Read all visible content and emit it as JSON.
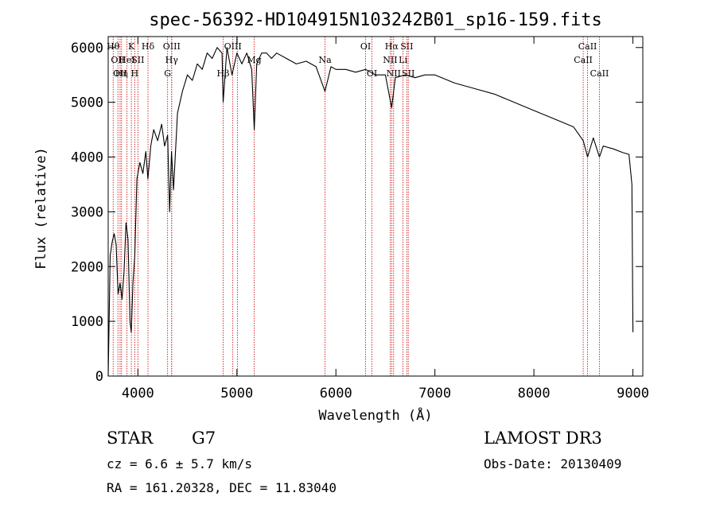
{
  "chart_data": {
    "type": "line",
    "title": "spec-56392-HD104915N103242B01_sp16-159.fits",
    "xlabel": "Wavelength (Å)",
    "ylabel": "Flux (relative)",
    "xlim": [
      3700,
      9100
    ],
    "ylim": [
      0,
      6200
    ],
    "xticks": [
      4000,
      5000,
      6000,
      7000,
      8000,
      9000
    ],
    "yticks": [
      0,
      1000,
      2000,
      3000,
      4000,
      5000,
      6000
    ],
    "series": [
      {
        "x": [
          3700,
          3720,
          3740,
          3760,
          3780,
          3800,
          3820,
          3840,
          3860,
          3880,
          3900,
          3920,
          3933,
          3950,
          3968,
          3990,
          4020,
          4050,
          4080,
          4101,
          4130,
          4160,
          4200,
          4240,
          4270,
          4300,
          4320,
          4340,
          4360,
          4400,
          4450,
          4500,
          4550,
          4600,
          4650,
          4700,
          4750,
          4800,
          4850,
          4861,
          4900,
          4950,
          5000,
          5050,
          5100,
          5150,
          5175,
          5200,
          5250,
          5300,
          5350,
          5400,
          5500,
          5600,
          5700,
          5800,
          5890,
          5950,
          6000,
          6100,
          6200,
          6300,
          6400,
          6500,
          6563,
          6600,
          6700,
          6800,
          6900,
          7000,
          7200,
          7400,
          7600,
          7800,
          8000,
          8200,
          8400,
          8498,
          8542,
          8600,
          8662,
          8700,
          8800,
          8900,
          8960,
          8990,
          9000
        ],
        "y": [
          0,
          2200,
          2450,
          2600,
          2400,
          1500,
          1700,
          1400,
          1900,
          2800,
          2500,
          1000,
          800,
          1700,
          2200,
          3600,
          3900,
          3700,
          4100,
          3600,
          4200,
          4500,
          4300,
          4600,
          4200,
          4400,
          3000,
          4100,
          3400,
          4800,
          5200,
          5500,
          5400,
          5700,
          5600,
          5900,
          5800,
          6000,
          5900,
          5000,
          6000,
          5500,
          5900,
          5700,
          5900,
          5600,
          4500,
          5700,
          5900,
          5900,
          5800,
          5900,
          5800,
          5700,
          5750,
          5650,
          5200,
          5650,
          5600,
          5600,
          5550,
          5600,
          5500,
          5500,
          4900,
          5450,
          5500,
          5450,
          5500,
          5500,
          5350,
          5250,
          5150,
          5000,
          4850,
          4700,
          4550,
          4300,
          4000,
          4350,
          4000,
          4200,
          4150,
          4080,
          4050,
          3500,
          800
        ]
      }
    ],
    "line_markers": [
      {
        "wavelength": 3750,
        "label": "Hθ",
        "row": 1
      },
      {
        "wavelength": 3798,
        "label": "OII",
        "row": 2
      },
      {
        "wavelength": 3820,
        "label": "OII",
        "row": 3
      },
      {
        "wavelength": 3835,
        "label": "Hη",
        "row": 3
      },
      {
        "wavelength": 3889,
        "label": "HeI",
        "row": 2
      },
      {
        "wavelength": 3934,
        "label": "K",
        "row": 1
      },
      {
        "wavelength": 3968,
        "label": "H",
        "row": 3
      },
      {
        "wavelength": 4000,
        "label": "SII",
        "row": 2
      },
      {
        "wavelength": 4102,
        "label": "Hδ",
        "row": 1
      },
      {
        "wavelength": 4300,
        "label": "G",
        "row": 3
      },
      {
        "wavelength": 4341,
        "label": "OIII",
        "row": 1
      },
      {
        "wavelength": 4341,
        "label": "Hγ",
        "row": 2
      },
      {
        "wavelength": 4861,
        "label": "Hβ",
        "row": 3
      },
      {
        "wavelength": 4959,
        "label": "OIII",
        "row": 1
      },
      {
        "wavelength": 5007,
        "label": "",
        "row": 1
      },
      {
        "wavelength": 5175,
        "label": "Mg",
        "row": 2
      },
      {
        "wavelength": 5890,
        "label": "Na",
        "row": 2
      },
      {
        "wavelength": 6300,
        "label": "OI",
        "row": 1
      },
      {
        "wavelength": 6364,
        "label": "OI",
        "row": 3
      },
      {
        "wavelength": 6548,
        "label": "NII",
        "row": 2
      },
      {
        "wavelength": 6563,
        "label": "Hα",
        "row": 1
      },
      {
        "wavelength": 6583,
        "label": "NII",
        "row": 3
      },
      {
        "wavelength": 6678,
        "label": "Li",
        "row": 2
      },
      {
        "wavelength": 6716,
        "label": "SII",
        "row": 1
      },
      {
        "wavelength": 6731,
        "label": "SII",
        "row": 3
      },
      {
        "wavelength": 8498,
        "label": "CaII",
        "row": 2
      },
      {
        "wavelength": 8542,
        "label": "CaII",
        "row": 1
      },
      {
        "wavelength": 8662,
        "label": "CaII",
        "row": 3
      }
    ],
    "marker_color": "#cc0000"
  },
  "info": {
    "object_type": "STAR",
    "subclass": "G7",
    "survey": "LAMOST DR3",
    "cz": "cz = 6.6 ± 5.7 km/s",
    "obs_date": "Obs-Date: 20130409",
    "coords": "RA = 161.20328, DEC =  11.83040"
  }
}
